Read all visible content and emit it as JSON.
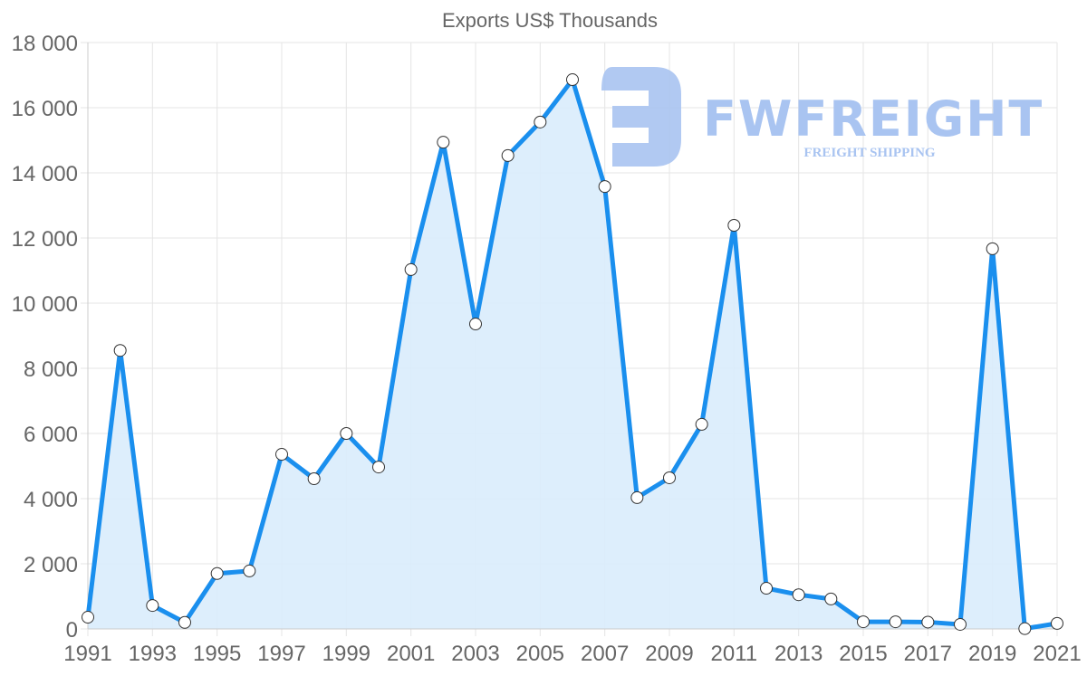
{
  "chart_data": {
    "type": "line",
    "title": "Exports US$ Thousands",
    "xlabel": "",
    "ylabel": "",
    "x": [
      1991,
      1992,
      1993,
      1994,
      1995,
      1996,
      1997,
      1998,
      1999,
      2000,
      2001,
      2002,
      2003,
      2004,
      2005,
      2006,
      2007,
      2008,
      2009,
      2010,
      2011,
      2012,
      2013,
      2014,
      2015,
      2016,
      2017,
      2018,
      2019,
      2020,
      2021
    ],
    "series": [
      {
        "name": "Exports US$ Thousands",
        "values": [
          360,
          8550,
          720,
          200,
          1700,
          1780,
          5360,
          4610,
          6000,
          4970,
          11030,
          14940,
          9360,
          14530,
          15560,
          16860,
          13580,
          4030,
          4640,
          6280,
          12390,
          1250,
          1050,
          920,
          220,
          220,
          210,
          140,
          11670,
          10,
          170
        ],
        "color": "#1a8fee",
        "fill": "#d9ecfc"
      }
    ],
    "x_tick_labels": [
      "1991",
      "1993",
      "1995",
      "1997",
      "1999",
      "2001",
      "2003",
      "2005",
      "2007",
      "2009",
      "2011",
      "2013",
      "2015",
      "2017",
      "2019",
      "2021"
    ],
    "y_tick_labels": [
      "0",
      "2 000",
      "4 000",
      "6 000",
      "8 000",
      "10 000",
      "12 000",
      "14 000",
      "16 000",
      "18 000"
    ],
    "y_ticks": [
      0,
      2000,
      4000,
      6000,
      8000,
      10000,
      12000,
      14000,
      16000,
      18000
    ],
    "ylim": [
      0,
      18000
    ],
    "xlim": [
      1991,
      2021
    ],
    "grid": true,
    "legend": "none",
    "markers": {
      "fill": "#ffffff",
      "stroke": "#333333",
      "radius": 6.5
    }
  },
  "watermark": {
    "brand": "FWFREIGHT",
    "tagline": "FREIGHT SHIPPING",
    "color": "#a9c4f1"
  }
}
